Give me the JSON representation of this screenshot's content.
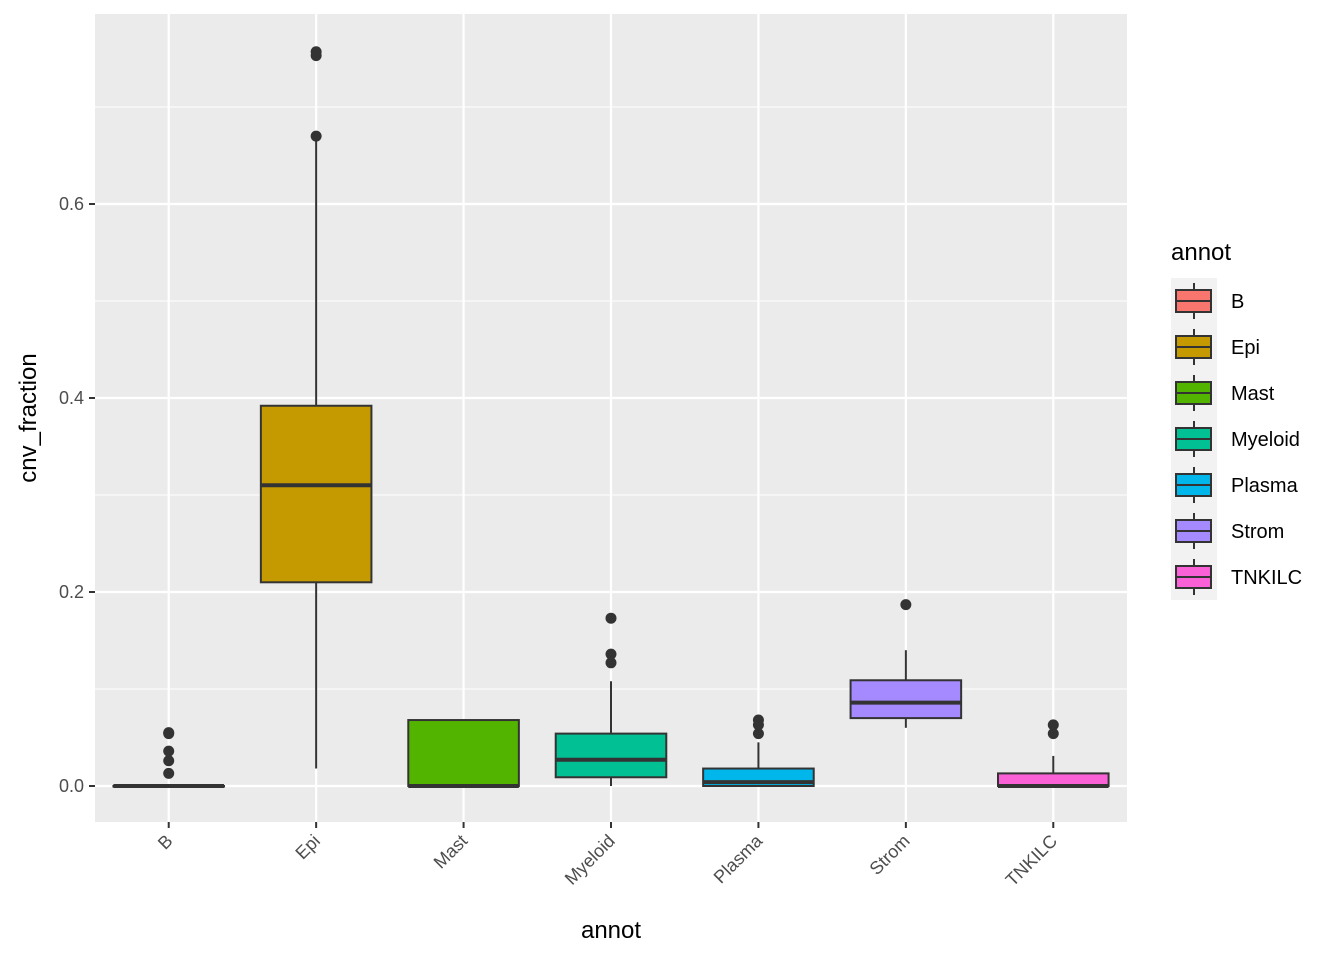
{
  "chart_data": {
    "type": "box",
    "xlabel": "annot",
    "ylabel": "cnv_fraction",
    "ylim": [
      -0.038,
      0.793
    ],
    "yticks": [
      0.0,
      0.2,
      0.4,
      0.6
    ],
    "ytick_labels": [
      "0.0",
      "0.2",
      "0.4",
      "0.6"
    ],
    "categories": [
      "B",
      "Epi",
      "Mast",
      "Myeloid",
      "Plasma",
      "Strom",
      "TNKILC"
    ],
    "grid": true,
    "legend": {
      "title": "annot",
      "position": "right",
      "entries": [
        "B",
        "Epi",
        "Mast",
        "Myeloid",
        "Plasma",
        "Strom",
        "TNKILC"
      ]
    },
    "colors": {
      "B": "#F8766D",
      "Epi": "#C49A00",
      "Mast": "#53B400",
      "Myeloid": "#00C094",
      "Plasma": "#00B6EB",
      "Strom": "#A58AFF",
      "TNKILC": "#FB61D7",
      "panel": "#EBEBEB",
      "grid": "#FFFFFF",
      "box_line": "#333333"
    },
    "boxes": [
      {
        "category": "B",
        "lower_whisker": 0.0,
        "q1": 0.0,
        "median": 0.0,
        "q3": 0.0,
        "upper_whisker": 0.0,
        "outliers": [
          0.013,
          0.026,
          0.036,
          0.054,
          0.055
        ]
      },
      {
        "category": "Epi",
        "lower_whisker": 0.018,
        "q1": 0.21,
        "median": 0.31,
        "q3": 0.392,
        "upper_whisker": 0.67,
        "outliers": [
          0.67,
          0.753,
          0.757
        ]
      },
      {
        "category": "Mast",
        "lower_whisker": 0.0,
        "q1": 0.0,
        "median": 0.0,
        "q3": 0.068,
        "upper_whisker": 0.068,
        "outliers": []
      },
      {
        "category": "Myeloid",
        "lower_whisker": 0.0,
        "q1": 0.009,
        "median": 0.027,
        "q3": 0.054,
        "upper_whisker": 0.108,
        "outliers": [
          0.127,
          0.136,
          0.173
        ]
      },
      {
        "category": "Plasma",
        "lower_whisker": 0.0,
        "q1": 0.0,
        "median": 0.004,
        "q3": 0.018,
        "upper_whisker": 0.045,
        "outliers": [
          0.054,
          0.063,
          0.068
        ]
      },
      {
        "category": "Strom",
        "lower_whisker": 0.06,
        "q1": 0.07,
        "median": 0.086,
        "q3": 0.109,
        "upper_whisker": 0.14,
        "outliers": [
          0.187
        ]
      },
      {
        "category": "TNKILC",
        "lower_whisker": 0.0,
        "q1": 0.0,
        "median": 0.0,
        "q3": 0.013,
        "upper_whisker": 0.031,
        "outliers": [
          0.054,
          0.063
        ]
      }
    ]
  }
}
